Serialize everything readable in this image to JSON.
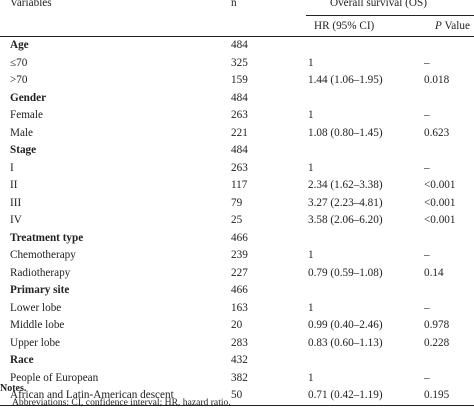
{
  "table": {
    "headers": {
      "variables": "Variables",
      "n": "n",
      "group": "Overall survival (OS)",
      "hr": "HR (95% CI)",
      "p_italic": "P",
      "p_rest": " Value"
    },
    "rows": [
      {
        "variable": "Age",
        "n": "484",
        "hr": "",
        "p": "",
        "heading": true
      },
      {
        "variable": "≤70",
        "n": "325",
        "hr": "1",
        "p": "–",
        "heading": false
      },
      {
        "variable": ">70",
        "n": "159",
        "hr": "1.44 (1.06–1.95)",
        "p": "0.018",
        "heading": false
      },
      {
        "variable": "Gender",
        "n": "484",
        "hr": "",
        "p": "",
        "heading": true
      },
      {
        "variable": "Female",
        "n": "263",
        "hr": "1",
        "p": "–",
        "heading": false
      },
      {
        "variable": "Male",
        "n": "221",
        "hr": "1.08 (0.80–1.45)",
        "p": "0.623",
        "heading": false
      },
      {
        "variable": "Stage",
        "n": "484",
        "hr": "",
        "p": "",
        "heading": true
      },
      {
        "variable": "I",
        "n": "263",
        "hr": "1",
        "p": "–",
        "heading": false
      },
      {
        "variable": "II",
        "n": "117",
        "hr": "2.34 (1.62–3.38)",
        "p": "<0.001",
        "heading": false
      },
      {
        "variable": "III",
        "n": "79",
        "hr": "3.27 (2.23–4.81)",
        "p": "<0.001",
        "heading": false
      },
      {
        "variable": "IV",
        "n": "25",
        "hr": "3.58 (2.06–6.20)",
        "p": "<0.001",
        "heading": false
      },
      {
        "variable": "Treatment type",
        "n": "466",
        "hr": "",
        "p": "",
        "heading": true
      },
      {
        "variable": "Chemotherapy",
        "n": "239",
        "hr": "1",
        "p": "–",
        "heading": false
      },
      {
        "variable": "Radiotherapy",
        "n": "227",
        "hr": "0.79 (0.59–1.08)",
        "p": "0.14",
        "heading": false
      },
      {
        "variable": "Primary site",
        "n": "466",
        "hr": "",
        "p": "",
        "heading": true
      },
      {
        "variable": "Lower lobe",
        "n": "163",
        "hr": "1",
        "p": "–",
        "heading": false
      },
      {
        "variable": "Middle lobe",
        "n": "20",
        "hr": "0.99 (0.40–2.46)",
        "p": "0.978",
        "heading": false
      },
      {
        "variable": "Upper lobe",
        "n": "283",
        "hr": "0.83 (0.60–1.13)",
        "p": "0.228",
        "heading": false
      },
      {
        "variable": "Race",
        "n": "432",
        "hr": "",
        "p": "",
        "heading": true
      },
      {
        "variable": "People of European",
        "n": "382",
        "hr": "1",
        "p": "–",
        "heading": false
      },
      {
        "variable": "African and Latin-American descent",
        "n": "50",
        "hr": "0.71 (0.42–1.19)",
        "p": "0.195",
        "heading": false
      }
    ]
  },
  "notes": {
    "title": "Notes.",
    "abbreviations": "Abbreviations: CI, confidence interval; HR, hazard ratio."
  }
}
